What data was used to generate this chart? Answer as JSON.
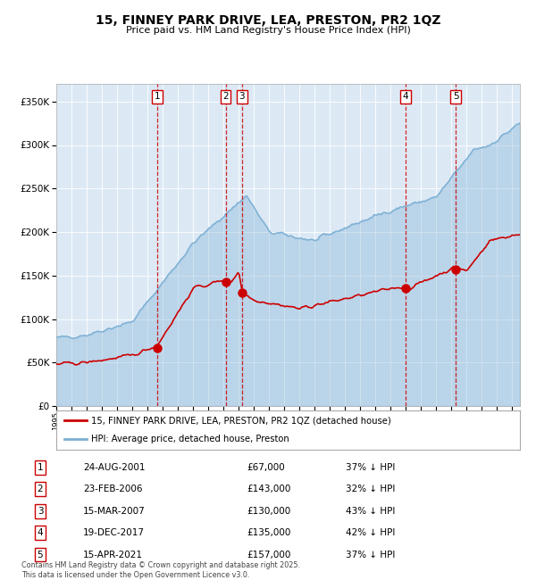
{
  "title": "15, FINNEY PARK DRIVE, LEA, PRESTON, PR2 1QZ",
  "subtitle": "Price paid vs. HM Land Registry's House Price Index (HPI)",
  "background_color": "#ffffff",
  "plot_bg_color": "#dce9f5",
  "hpi_color": "#7bafd4",
  "hpi_fill_alpha": 0.35,
  "price_color": "#cc0000",
  "vline_color": "#cc0000",
  "ylim": [
    0,
    370000
  ],
  "yticks": [
    0,
    50000,
    100000,
    150000,
    200000,
    250000,
    300000,
    350000
  ],
  "ytick_labels": [
    "£0",
    "£50K",
    "£100K",
    "£150K",
    "£200K",
    "£250K",
    "£300K",
    "£350K"
  ],
  "sale_dates_num": [
    2001.646,
    2006.14,
    2007.21,
    2017.97,
    2021.29
  ],
  "sale_prices": [
    67000,
    143000,
    130000,
    135000,
    157000
  ],
  "sale_labels": [
    "1",
    "2",
    "3",
    "4",
    "5"
  ],
  "sale_info": [
    {
      "label": "1",
      "date": "24-AUG-2001",
      "price": "£67,000",
      "pct": "37% ↓ HPI"
    },
    {
      "label": "2",
      "date": "23-FEB-2006",
      "price": "£143,000",
      "pct": "32% ↓ HPI"
    },
    {
      "label": "3",
      "date": "15-MAR-2007",
      "price": "£130,000",
      "pct": "43% ↓ HPI"
    },
    {
      "label": "4",
      "date": "19-DEC-2017",
      "price": "£135,000",
      "pct": "42% ↓ HPI"
    },
    {
      "label": "5",
      "date": "15-APR-2021",
      "price": "£157,000",
      "pct": "37% ↓ HPI"
    }
  ],
  "legend_line1": "15, FINNEY PARK DRIVE, LEA, PRESTON, PR2 1QZ (detached house)",
  "legend_line2": "HPI: Average price, detached house, Preston",
  "footnote": "Contains HM Land Registry data © Crown copyright and database right 2025.\nThis data is licensed under the Open Government Licence v3.0.",
  "xmin": 1995,
  "xmax": 2025.5
}
